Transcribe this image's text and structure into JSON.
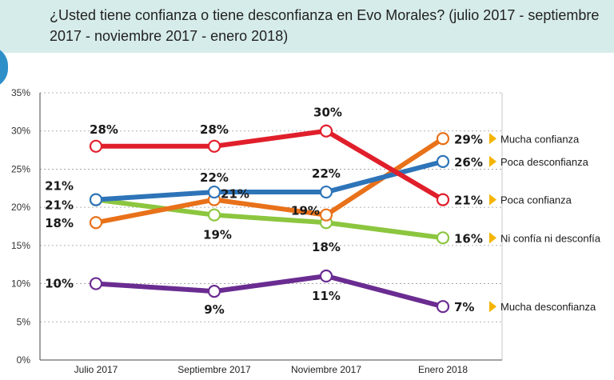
{
  "chart_data": {
    "type": "line",
    "title": "¿Usted tiene confianza o tiene desconfianza en Evo Morales? (julio 2017 - septiembre 2017 - noviembre 2017 - enero 2018)",
    "categories": [
      "Julio 2017",
      "Septiembre 2017",
      "Noviembre 2017",
      "Enero 2018"
    ],
    "ylim": [
      0,
      35
    ],
    "yticks": [
      "0%",
      "5%",
      "10%",
      "15%",
      "20%",
      "25%",
      "30%",
      "35%"
    ],
    "grid": true,
    "legend": "right",
    "series": [
      {
        "name": "Mucha confianza",
        "color": "#e8711a",
        "values": [
          18,
          21,
          19,
          29
        ],
        "labels": [
          "18%",
          "21%",
          "19%",
          "29%"
        ]
      },
      {
        "name": "Poca desconfianza",
        "color": "#2e74b8",
        "values": [
          21,
          22,
          22,
          26
        ],
        "labels": [
          "21%",
          "22%",
          "22%",
          "26%"
        ]
      },
      {
        "name": "Poca confianza",
        "color": "#e01f2b",
        "values": [
          28,
          28,
          30,
          21
        ],
        "labels": [
          "28%",
          "28%",
          "30%",
          "21%"
        ]
      },
      {
        "name": "Ni confía ni desconfía",
        "color": "#8cc63f",
        "values": [
          21,
          19,
          18,
          16
        ],
        "labels": [
          "21%",
          "19%",
          "18%",
          "16%"
        ]
      },
      {
        "name": "Mucha desconfianza",
        "color": "#6a2c91",
        "values": [
          10,
          9,
          11,
          7
        ],
        "labels": [
          "10%",
          "9%",
          "11%",
          "7%"
        ]
      }
    ]
  }
}
